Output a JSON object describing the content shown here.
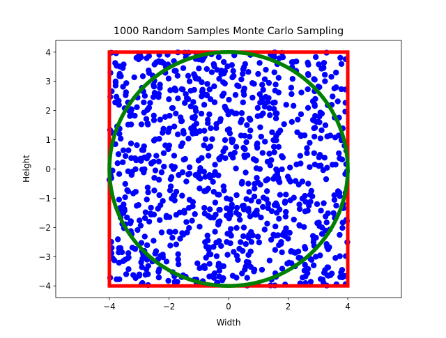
{
  "chart_data": {
    "type": "scatter",
    "title": "1000 Random Samples Monte Carlo Sampling",
    "xlabel": "Width",
    "ylabel": "Height",
    "xlim": [
      -5.8,
      5.8
    ],
    "ylim": [
      -4.4,
      4.4
    ],
    "xticks": [
      -4,
      -2,
      0,
      2,
      4
    ],
    "yticks": [
      -4,
      -3,
      -2,
      -1,
      0,
      1,
      2,
      3,
      4
    ],
    "xtick_labels": [
      "−4",
      "−2",
      "0",
      "2",
      "4"
    ],
    "ytick_labels": [
      "−4",
      "−3",
      "−2",
      "−1",
      "0",
      "1",
      "2",
      "3",
      "4"
    ],
    "grid": false,
    "sample_count": 1000,
    "sample_range": {
      "x": [
        -4,
        4
      ],
      "y": [
        -4,
        4
      ]
    },
    "square": {
      "x": [
        -4,
        4
      ],
      "y": [
        -4,
        4
      ],
      "color": "#ff0000"
    },
    "circle": {
      "center": [
        0,
        0
      ],
      "radius": 4,
      "color": "#008000"
    },
    "points_color": "#0000ff"
  }
}
